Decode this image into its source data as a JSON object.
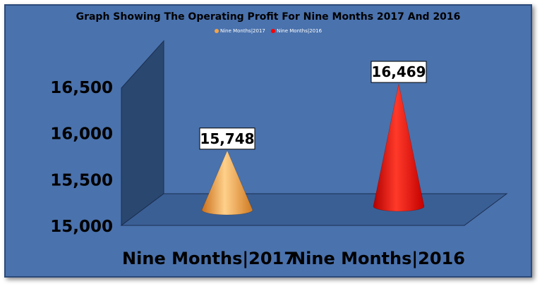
{
  "chart_data": {
    "type": "bar",
    "shape": "cone-3d",
    "title": "Graph Showing The Operating Profit For Nine Months 2017 And 2016",
    "categories": [
      "Nine Months|2017",
      "Nine Months|2016"
    ],
    "series": [
      {
        "name": "Nine Months|2017",
        "values": [
          15748,
          null
        ],
        "color": "#f5a447"
      },
      {
        "name": "Nine Months|2016",
        "values": [
          null,
          16469
        ],
        "color": "#ff0000"
      }
    ],
    "values": [
      15748,
      16469
    ],
    "data_labels": [
      "15,748",
      "16,469"
    ],
    "y_ticks": [
      15000,
      15500,
      16000,
      16500
    ],
    "y_tick_labels": [
      "15,000",
      "15,500",
      "16,000",
      "16,500"
    ],
    "ylim": [
      15000,
      16500
    ],
    "xlabel": "",
    "ylabel": "",
    "legend_position": "top",
    "grid": false,
    "colors": {
      "background": "#4a72ad",
      "wall": "#2a4770",
      "floor": "#3a5f95"
    }
  }
}
